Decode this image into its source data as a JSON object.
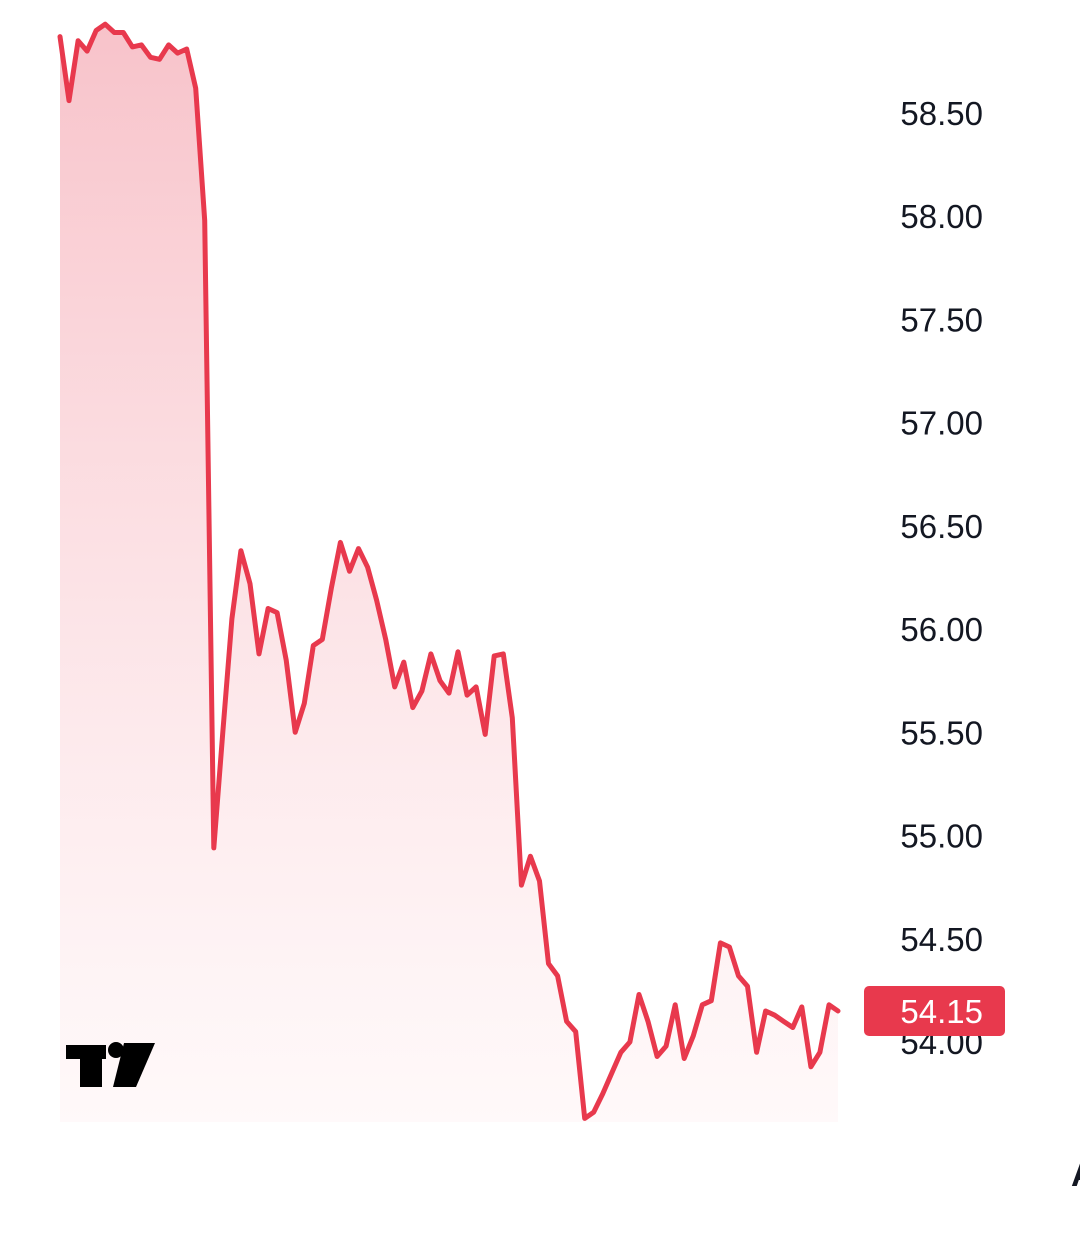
{
  "chart_data": {
    "type": "area",
    "title": "",
    "xlabel": "",
    "ylabel": "",
    "ylim": [
      53.6,
      58.95
    ],
    "y_ticks": [
      "58.50",
      "58.00",
      "57.50",
      "57.00",
      "56.50",
      "56.00",
      "55.50",
      "55.00",
      "54.50",
      "54.00"
    ],
    "x_ticks": [
      {
        "label": "Apr",
        "index": 115
      }
    ],
    "last_price_label": "54.15",
    "grid": false,
    "colors": {
      "line": "#e8394d",
      "fill_top": "#f7bcc4",
      "fill_bottom": "#fff5f6",
      "label_bg": "#e8394d",
      "text": "#131722"
    },
    "logo": "tradingview-logo",
    "series": [
      {
        "values": [
          58.87,
          58.56,
          58.85,
          58.8,
          58.9,
          58.93,
          58.89,
          58.89,
          58.82,
          58.83,
          58.77,
          58.76,
          58.83,
          58.79,
          58.81,
          58.62,
          57.98,
          54.94,
          55.5,
          56.05,
          56.38,
          56.22,
          55.88,
          56.1,
          56.08,
          55.85,
          55.5,
          55.64,
          55.92,
          55.95,
          56.2,
          56.42,
          56.28,
          56.39,
          56.3,
          56.14,
          55.95,
          55.72,
          55.84,
          55.62,
          55.7,
          55.88,
          55.75,
          55.69,
          55.89,
          55.68,
          55.72,
          55.49,
          55.87,
          55.88,
          55.57,
          54.76,
          54.9,
          54.78,
          54.38,
          54.32,
          54.1,
          54.05,
          53.63,
          53.66,
          53.75,
          53.85,
          53.95,
          54.0,
          54.23,
          54.1,
          53.93,
          53.98,
          54.18,
          53.92,
          54.03,
          54.18,
          54.2,
          54.48,
          54.46,
          54.32,
          54.27,
          53.95,
          54.15,
          54.13,
          54.1,
          54.07,
          54.17,
          53.88,
          53.95,
          54.18,
          54.15
        ]
      }
    ]
  }
}
